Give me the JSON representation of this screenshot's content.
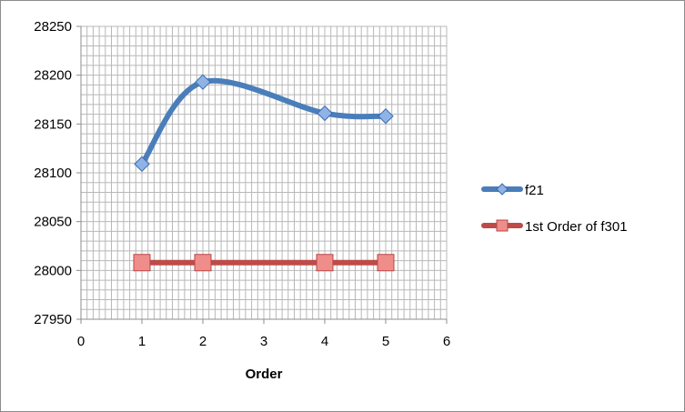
{
  "chart_data": {
    "type": "scatter",
    "title": "",
    "xlabel": "Order",
    "ylabel": "",
    "xlim": [
      0,
      6
    ],
    "ylim": [
      27950,
      28250
    ],
    "x_ticks": [
      0,
      1,
      2,
      3,
      4,
      5,
      6
    ],
    "y_ticks": [
      27950,
      28000,
      28050,
      28100,
      28150,
      28200,
      28250
    ],
    "grid": true,
    "legend_position": "right",
    "series": [
      {
        "name": "f21",
        "color": "#4a7ebb",
        "marker": "diamond",
        "smooth": true,
        "x": [
          1,
          2,
          4,
          5
        ],
        "y": [
          28109,
          28193,
          28161,
          28158
        ]
      },
      {
        "name": "1st Order of f301",
        "color": "#be4b48",
        "marker": "square",
        "smooth": false,
        "x": [
          1,
          2,
          4,
          5
        ],
        "y": [
          28008,
          28008,
          28008,
          28008
        ]
      }
    ]
  }
}
